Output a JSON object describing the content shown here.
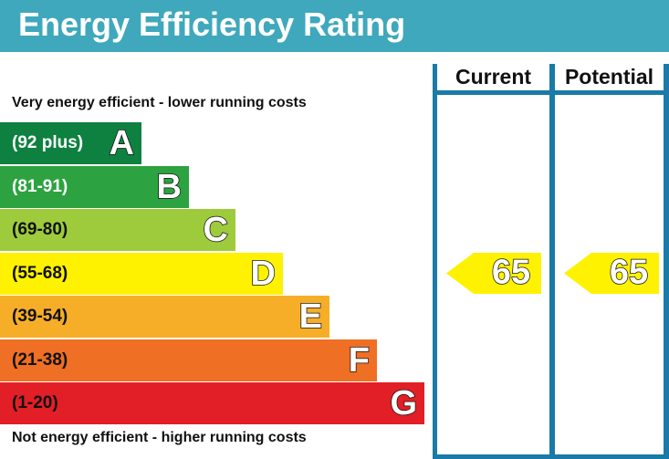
{
  "header": {
    "title": "Energy Efficiency Rating"
  },
  "notes": {
    "top": "Very energy efficient - lower running costs",
    "bottom": "Not energy efficient - higher running costs"
  },
  "columns": {
    "current": "Current",
    "potential": "Potential"
  },
  "chart_data": {
    "type": "bar",
    "title": "Energy Efficiency Rating",
    "categories": [
      "A",
      "B",
      "C",
      "D",
      "E",
      "F",
      "G"
    ],
    "bands": [
      {
        "letter": "A",
        "range": "(92 plus)",
        "color": "#0e8140",
        "text_color": "#ffffff"
      },
      {
        "letter": "B",
        "range": "(81-91)",
        "color": "#2ca340",
        "text_color": "#ffffff"
      },
      {
        "letter": "C",
        "range": "(69-80)",
        "color": "#9dcb3b",
        "text_color": "#111111"
      },
      {
        "letter": "D",
        "range": "(55-68)",
        "color": "#fef200",
        "text_color": "#111111"
      },
      {
        "letter": "E",
        "range": "(39-54)",
        "color": "#f6ae29",
        "text_color": "#111111"
      },
      {
        "letter": "F",
        "range": "(21-38)",
        "color": "#ef6f24",
        "text_color": "#111111"
      },
      {
        "letter": "G",
        "range": "(1-20)",
        "color": "#e21f26",
        "text_color": "#111111"
      }
    ],
    "current": {
      "value": 65,
      "band": "D"
    },
    "potential": {
      "value": 65,
      "band": "D"
    },
    "indicator_color": "#fef200"
  }
}
